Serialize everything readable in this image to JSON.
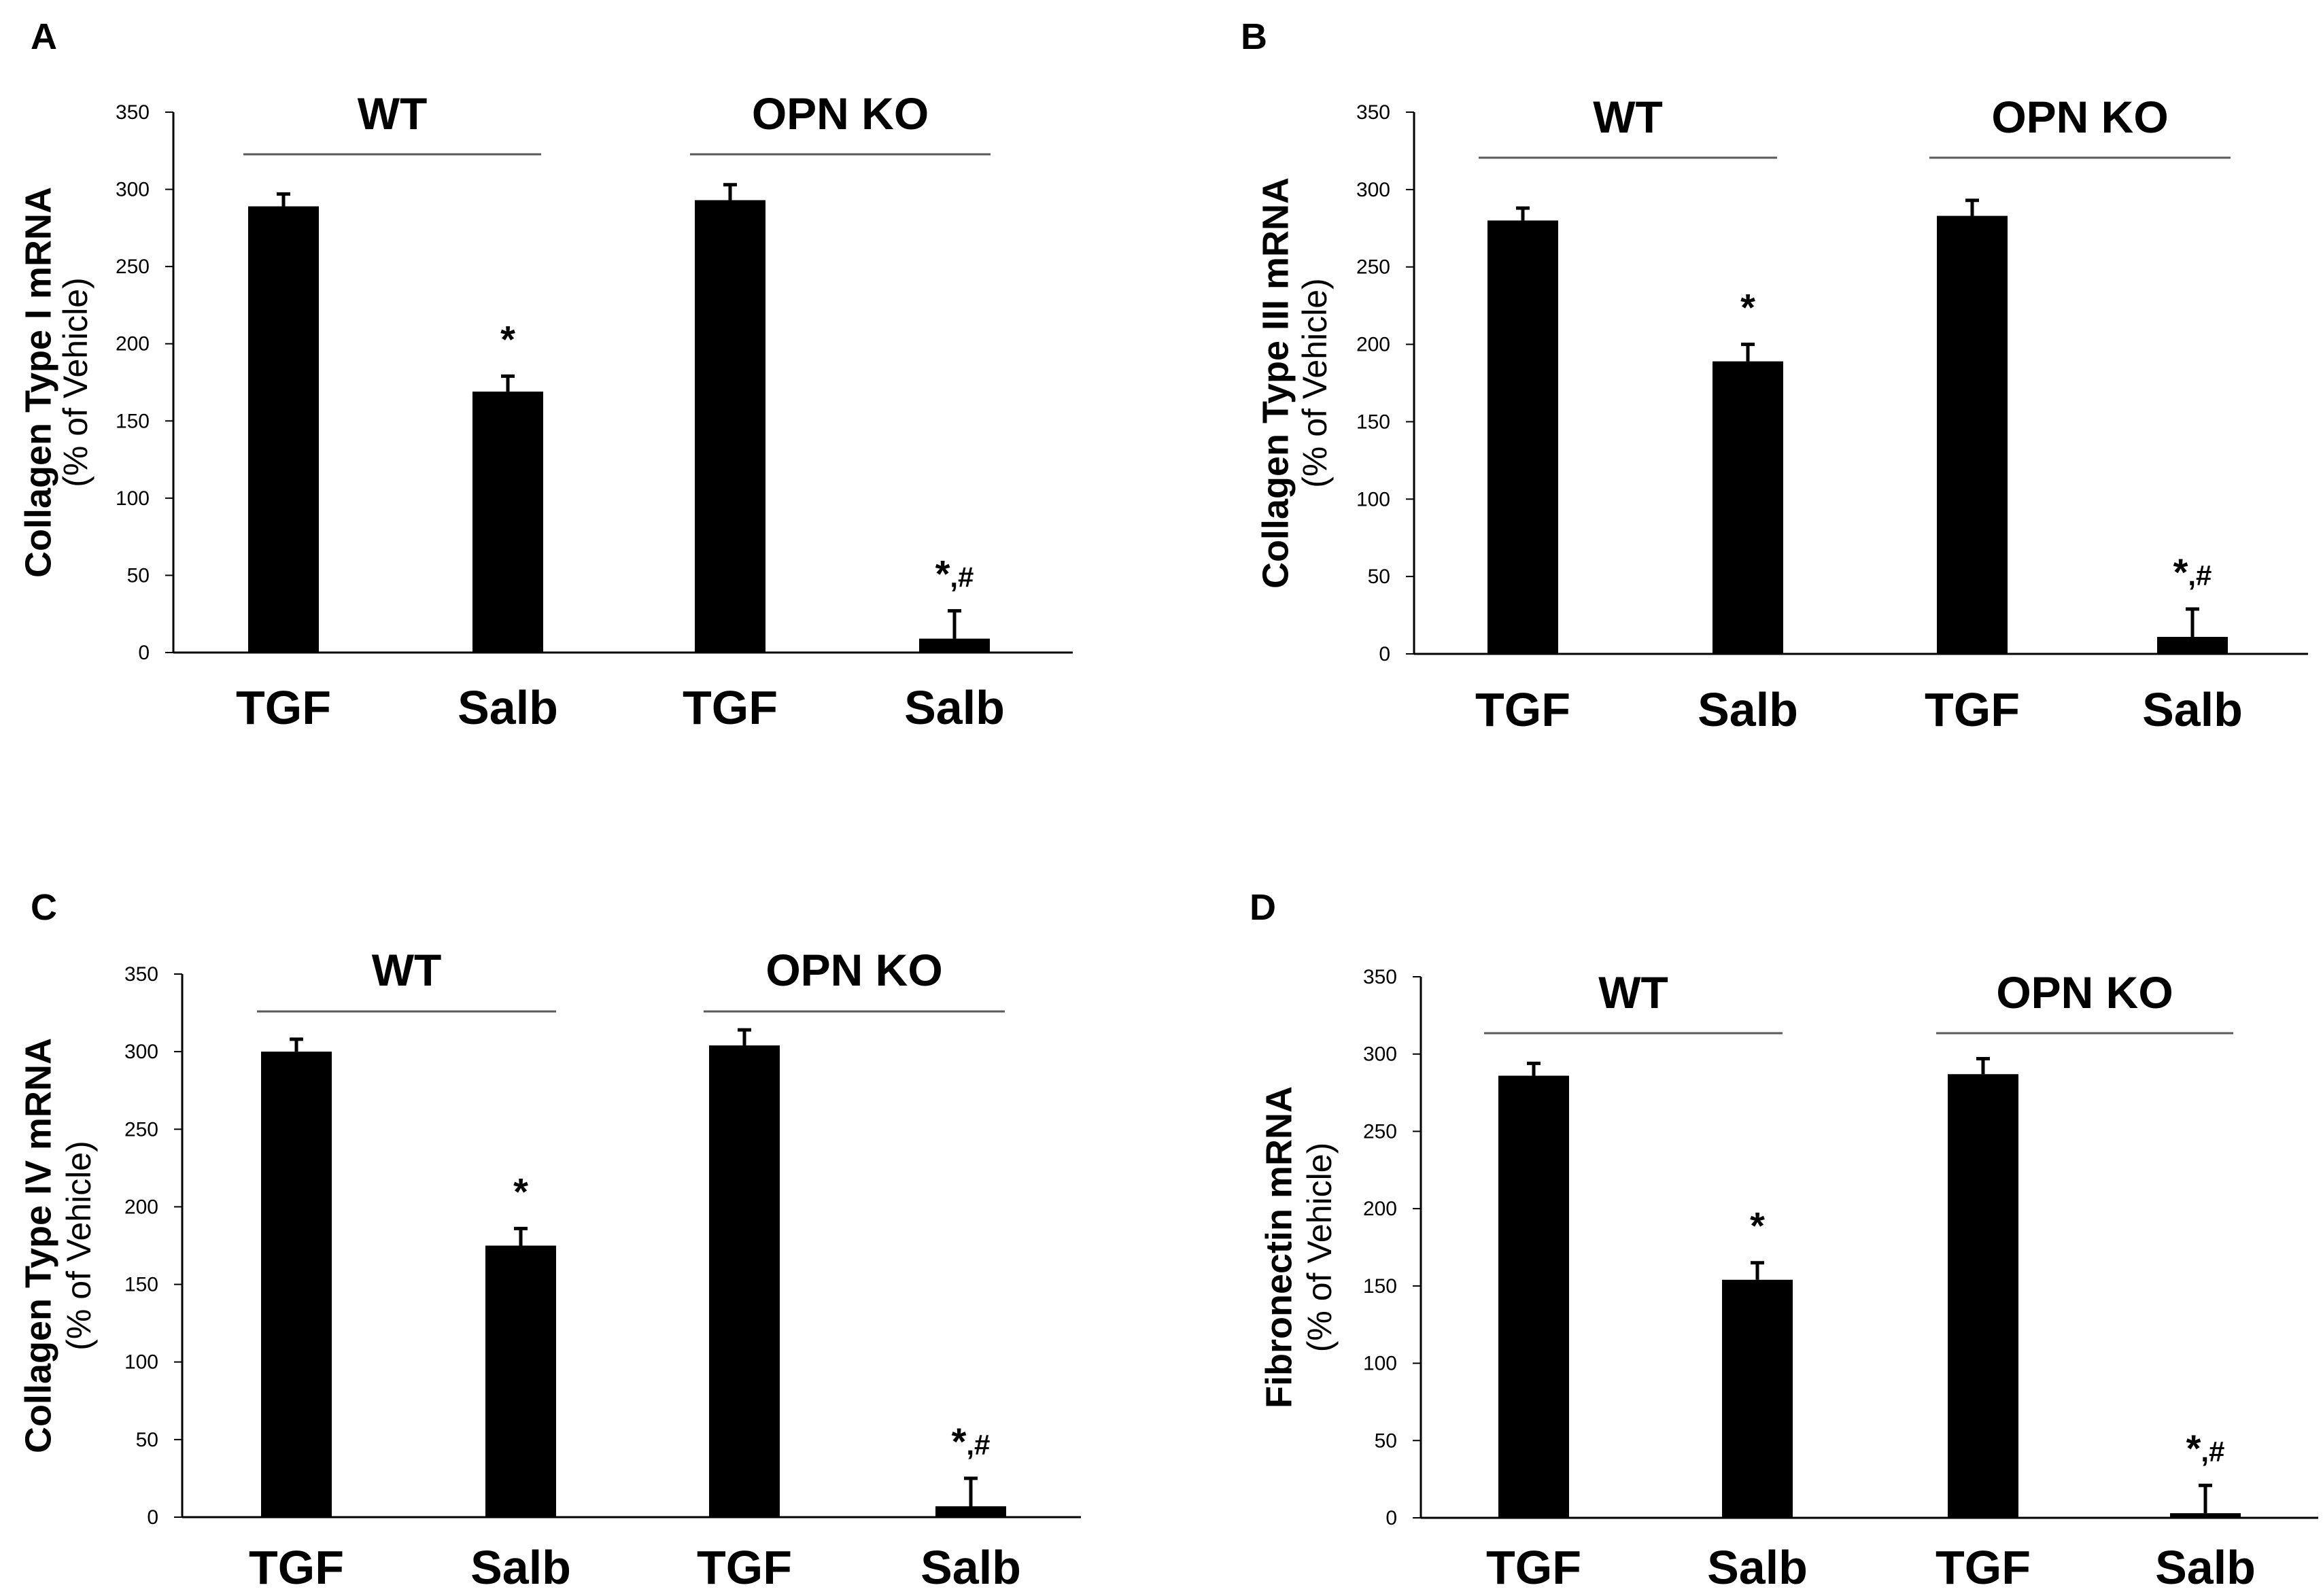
{
  "colors": {
    "bar": "#000000",
    "axis": "#000000",
    "group_line": "#595959"
  },
  "chart_data": [
    {
      "type": "bar",
      "panel": "A",
      "ylabel": "Collagen Type I mRNA",
      "ylabel_sub": "(% of Vehicle)",
      "ylim": [
        0,
        350
      ],
      "yticks": [
        "0",
        "50",
        "100",
        "150",
        "200",
        "250",
        "300",
        "350"
      ],
      "groups": [
        {
          "label": "WT",
          "categories": [
            "TGF",
            "Salb"
          ]
        },
        {
          "label": "OPN KO",
          "categories": [
            "TGF",
            "Salb"
          ]
        }
      ],
      "categories": [
        "TGF",
        "Salb",
        "TGF",
        "Salb"
      ],
      "values": [
        289,
        169,
        293,
        9
      ],
      "errors": [
        8,
        10,
        10,
        18
      ],
      "significance": [
        "",
        "*",
        "",
        "*,#"
      ],
      "grid": false
    },
    {
      "type": "bar",
      "panel": "B",
      "ylabel": "Collagen Type III mRNA",
      "ylabel_sub": "(% of Vehicle)",
      "ylim": [
        0,
        350
      ],
      "yticks": [
        "0",
        "50",
        "100",
        "150",
        "200",
        "250",
        "300",
        "350"
      ],
      "groups": [
        {
          "label": "WT",
          "categories": [
            "TGF",
            "Salb"
          ]
        },
        {
          "label": "OPN KO",
          "categories": [
            "TGF",
            "Salb"
          ]
        }
      ],
      "categories": [
        "TGF",
        "Salb",
        "TGF",
        "Salb"
      ],
      "values": [
        280,
        189,
        283,
        11
      ],
      "errors": [
        8,
        11,
        10,
        18
      ],
      "significance": [
        "",
        "*",
        "",
        "*,#"
      ],
      "grid": false
    },
    {
      "type": "bar",
      "panel": "C",
      "ylabel": "Collagen Type IV mRNA",
      "ylabel_sub": "(% of Vehicle)",
      "ylim": [
        0,
        350
      ],
      "yticks": [
        "0",
        "50",
        "100",
        "150",
        "200",
        "250",
        "300",
        "350"
      ],
      "groups": [
        {
          "label": "WT",
          "categories": [
            "TGF",
            "Salb"
          ]
        },
        {
          "label": "OPN KO",
          "categories": [
            "TGF",
            "Salb"
          ]
        }
      ],
      "categories": [
        "TGF",
        "Salb",
        "TGF",
        "Salb"
      ],
      "values": [
        300,
        175,
        304,
        7
      ],
      "errors": [
        8,
        11,
        10,
        18
      ],
      "significance": [
        "",
        "*",
        "",
        "*,#"
      ],
      "grid": false
    },
    {
      "type": "bar",
      "panel": "D",
      "ylabel": "Fibronectin mRNA",
      "ylabel_sub": "(% of Vehicle)",
      "ylim": [
        0,
        350
      ],
      "yticks": [
        "0",
        "50",
        "100",
        "150",
        "200",
        "250",
        "300",
        "350"
      ],
      "groups": [
        {
          "label": "WT",
          "categories": [
            "TGF",
            "Salb"
          ]
        },
        {
          "label": "OPN KO",
          "categories": [
            "TGF",
            "Salb"
          ]
        }
      ],
      "categories": [
        "TGF",
        "Salb",
        "TGF",
        "Salb"
      ],
      "values": [
        286,
        154,
        287,
        3
      ],
      "errors": [
        8,
        11,
        10,
        18
      ],
      "significance": [
        "",
        "*",
        "",
        "*,#"
      ],
      "grid": false
    }
  ]
}
